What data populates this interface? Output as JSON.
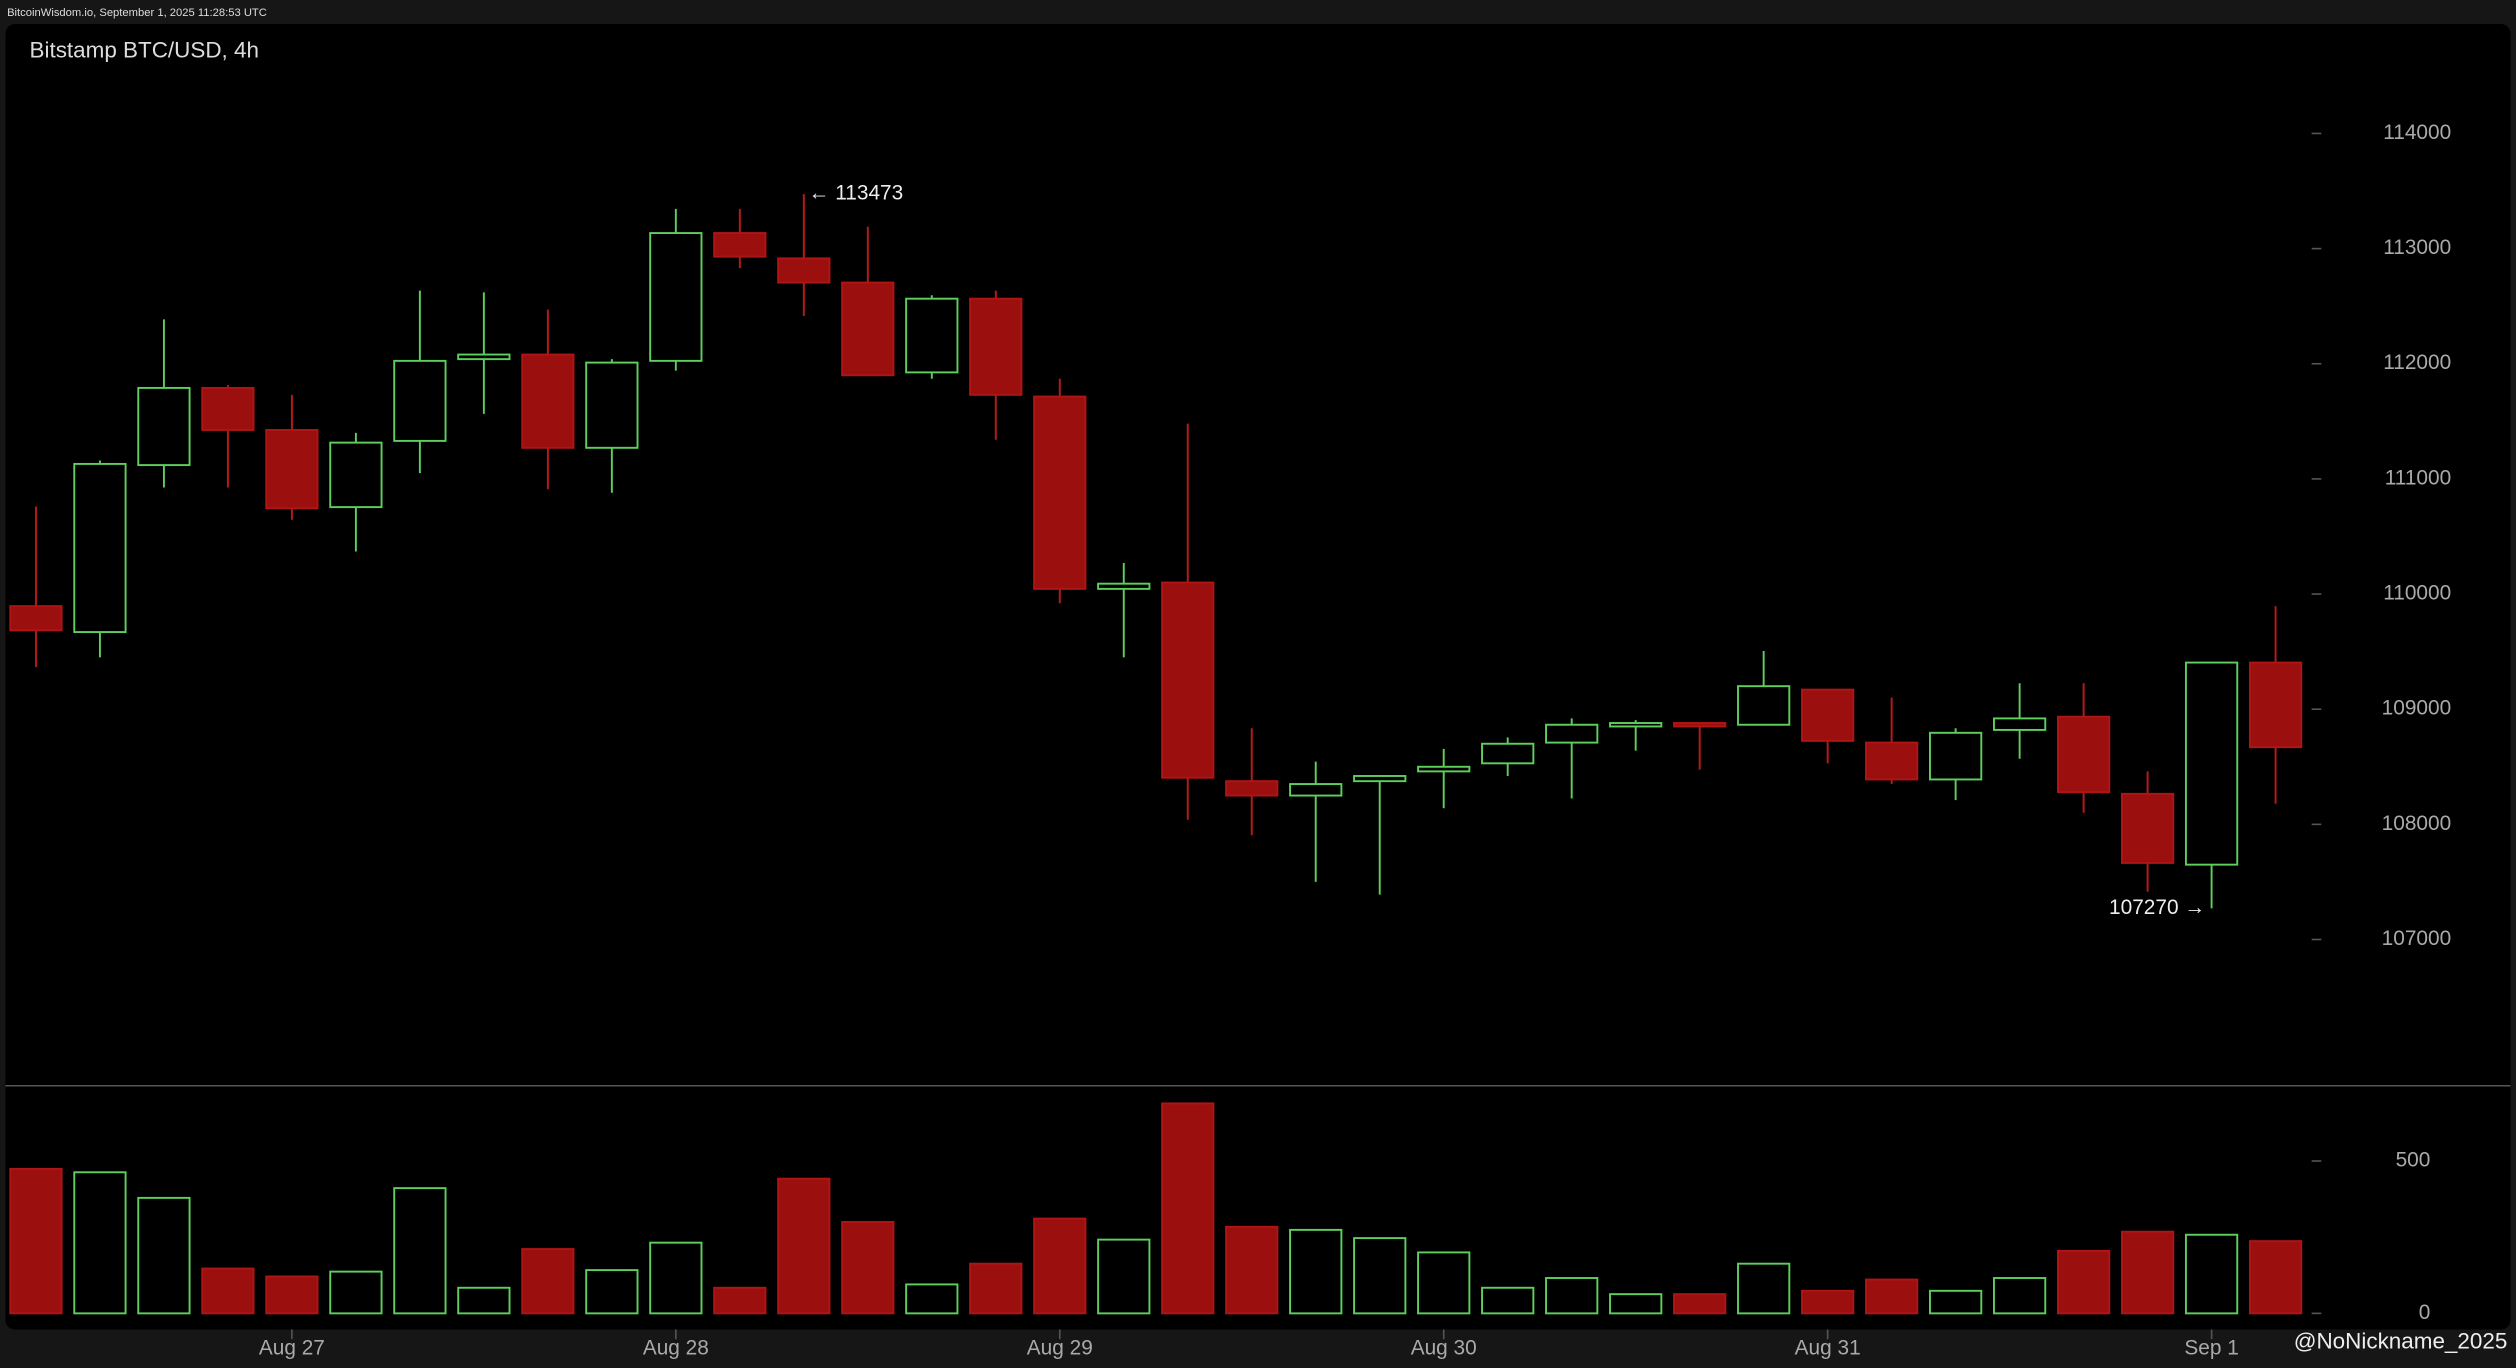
{
  "chart_data": {
    "type": "candlestick",
    "header": "BitcoinWisdom.io, September 1, 2025 11:28:53 UTC",
    "title": "Bitstamp BTC/USD, 4h",
    "watermark": "@NoNickname_2025",
    "high_label": "← 113473",
    "low_label": "107270 →",
    "categories": [
      null,
      null,
      null,
      null,
      "Aug 27",
      null,
      null,
      null,
      null,
      null,
      "Aug 28",
      null,
      null,
      null,
      null,
      null,
      "Aug 29",
      null,
      null,
      null,
      null,
      null,
      "Aug 30",
      null,
      null,
      null,
      null,
      null,
      "Aug 31",
      null,
      null,
      null,
      null,
      null,
      "Sep 1",
      null
    ],
    "open": [
      109895,
      109670,
      111120,
      111790,
      111425,
      110755,
      111330,
      112040,
      112080,
      111270,
      112025,
      113135,
      112915,
      112705,
      111925,
      112565,
      111715,
      110045,
      110100,
      108375,
      108250,
      108375,
      108460,
      108530,
      108710,
      108850,
      108880,
      108865,
      109170,
      108710,
      108390,
      108820,
      108935,
      108265,
      107650,
      109405
    ],
    "high": [
      110760,
      111160,
      112385,
      111815,
      111730,
      111400,
      112635,
      112620,
      112470,
      112040,
      113345,
      113345,
      113473,
      113190,
      112595,
      112635,
      111870,
      110270,
      111480,
      108835,
      108545,
      108420,
      108655,
      108755,
      108920,
      108905,
      108880,
      109505,
      109170,
      109100,
      108835,
      109225,
      109225,
      108460,
      109405,
      109895
    ],
    "low": [
      109365,
      109450,
      110925,
      110925,
      110645,
      110370,
      111050,
      111565,
      110910,
      110880,
      111940,
      112830,
      112415,
      111900,
      111870,
      111340,
      109920,
      109450,
      108040,
      107905,
      107500,
      107390,
      108140,
      108420,
      108225,
      108640,
      108475,
      108865,
      108530,
      108350,
      108210,
      108570,
      108100,
      107415,
      107270,
      108180
    ],
    "close": [
      109685,
      111130,
      111790,
      111425,
      110745,
      111315,
      112025,
      112080,
      111270,
      112010,
      113135,
      112930,
      112705,
      111900,
      112565,
      111730,
      110045,
      110090,
      108405,
      108250,
      108350,
      108420,
      108500,
      108700,
      108865,
      108880,
      108850,
      109200,
      108725,
      108390,
      108795,
      108920,
      108280,
      107665,
      109405,
      108670
    ],
    "volume": [
      474,
      463,
      379,
      147,
      121,
      137,
      411,
      84,
      211,
      142,
      232,
      84,
      442,
      300,
      95,
      163,
      311,
      242,
      689,
      284,
      274,
      247,
      200,
      84,
      116,
      63,
      63,
      163,
      74,
      111,
      74,
      116,
      205,
      268,
      258,
      237
    ],
    "ylim": [
      105730,
      114950
    ],
    "yticks": [
      107000,
      108000,
      109000,
      110000,
      111000,
      112000,
      113000,
      114000
    ],
    "volume_ylim": [
      -53,
      747
    ],
    "volume_yticks": [
      0,
      500
    ],
    "up_color": "#5ccf5c",
    "down_color": "#9b0f0f"
  }
}
